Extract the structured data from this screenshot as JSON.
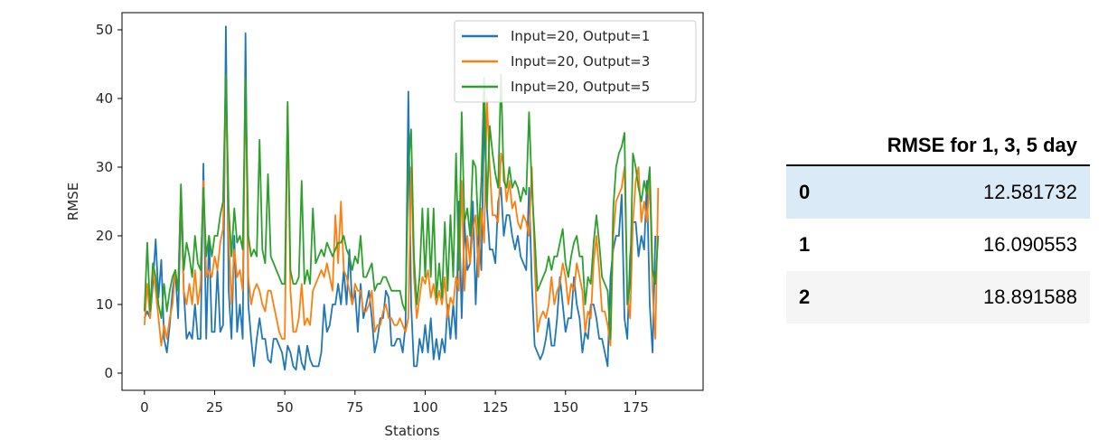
{
  "chart_data": {
    "type": "line",
    "xlabel": "Stations",
    "ylabel": "RMSE",
    "xlim": [
      -8,
      199
    ],
    "ylim": [
      -2.5,
      52.5
    ],
    "xticks": [
      0,
      25,
      50,
      75,
      100,
      125,
      150,
      175
    ],
    "yticks": [
      0,
      10,
      20,
      30,
      40,
      50
    ],
    "legend_position": "top-right",
    "colors": [
      "#1f77b4",
      "#ff7f0e",
      "#2ca02c"
    ],
    "series": [
      {
        "name": "Input=20, Output=1",
        "color": "#1f77b4",
        "values": [
          8,
          9,
          8,
          13,
          19.5,
          11,
          16.5,
          5,
          3,
          7,
          12,
          15,
          8,
          25,
          12,
          5,
          6,
          5,
          10,
          5,
          5,
          30.5,
          5,
          20,
          6,
          6,
          15,
          6,
          7,
          50.5,
          12,
          5,
          20,
          6,
          10,
          5,
          49.5,
          10,
          5,
          1,
          5,
          8,
          5,
          5,
          2,
          1.5,
          5,
          5,
          4,
          3,
          0.5,
          4,
          3,
          1,
          0.5,
          4,
          1.5,
          0.5,
          4,
          2,
          1,
          1,
          1,
          3,
          10,
          6,
          7,
          10,
          10,
          13,
          10,
          15,
          10,
          18,
          10,
          12,
          6,
          13,
          8,
          10,
          12,
          8,
          3,
          5,
          8,
          8,
          12,
          11,
          4,
          4,
          5,
          5,
          3,
          7,
          41,
          10,
          1,
          1,
          5,
          3,
          7,
          3,
          8,
          2,
          5,
          2,
          5,
          3,
          10,
          5,
          10,
          5,
          25,
          8,
          22,
          15,
          16,
          25,
          10,
          21,
          15,
          38,
          24,
          18,
          18,
          16,
          25,
          27,
          20,
          23,
          23,
          20,
          18,
          20,
          17,
          16,
          15,
          27,
          13,
          4,
          3,
          2,
          3,
          5,
          8,
          4,
          4,
          8,
          14,
          10,
          6,
          8,
          8,
          14,
          10,
          8,
          3,
          6,
          5,
          10,
          10,
          8,
          5,
          5,
          3,
          1,
          14,
          18,
          20,
          20,
          26,
          8,
          5,
          17,
          22,
          22,
          17,
          20,
          18,
          28,
          10,
          3,
          20
        ],
        "values_scale_note": ""
      },
      {
        "name": "Input=20, Output=3",
        "color": "#ff7f0e",
        "values": [
          7,
          13,
          8,
          15,
          12,
          8,
          4,
          7,
          5,
          8,
          10,
          15,
          12,
          27,
          12,
          10,
          13,
          10,
          15,
          10,
          13,
          28,
          14,
          15,
          14,
          17,
          15,
          19,
          21,
          43,
          20,
          10,
          18,
          14,
          15,
          12,
          42.5,
          14,
          10,
          12,
          13,
          12,
          10,
          9,
          12,
          12,
          10,
          8,
          6,
          5,
          5,
          39,
          12,
          6,
          6,
          8,
          13,
          7,
          8,
          7,
          12,
          13,
          14,
          15,
          14,
          16,
          14,
          12,
          23,
          16,
          25,
          15,
          14,
          12,
          10,
          13,
          12,
          12,
          9,
          9,
          10,
          12,
          6,
          7,
          7,
          9,
          10,
          8,
          8,
          7,
          7,
          8,
          7,
          6,
          8,
          30,
          14,
          8,
          11,
          14,
          13,
          15,
          11,
          13,
          10,
          12,
          10,
          14,
          8,
          11,
          10,
          14,
          12,
          28,
          12,
          20,
          16,
          21,
          23,
          14,
          24,
          19,
          40,
          30,
          23,
          23,
          22,
          32,
          30,
          25,
          28,
          24,
          25,
          22,
          21,
          23,
          22,
          20,
          30,
          16,
          6,
          8,
          9,
          8,
          10,
          14,
          10,
          12,
          13,
          16,
          14,
          10,
          13,
          12,
          16,
          14,
          12,
          6,
          9,
          8,
          16,
          20,
          15,
          9,
          9,
          7,
          4,
          20,
          25,
          26,
          27,
          30,
          12,
          8,
          22,
          28,
          30,
          22,
          25,
          22,
          28,
          12,
          5,
          27
        ]
      },
      {
        "name": "Input=20, Output=5",
        "color": "#2ca02c",
        "values": [
          9,
          19,
          9,
          16,
          14,
          10,
          8,
          13,
          9,
          12,
          14,
          15,
          12,
          27.5,
          15,
          19,
          17,
          14,
          20,
          16,
          15,
          27,
          17,
          20,
          17,
          20,
          20,
          23,
          25,
          43.5,
          24,
          17,
          24,
          19,
          20,
          18,
          43,
          20,
          17,
          18,
          17,
          34,
          18,
          16,
          29,
          17,
          16,
          15,
          14,
          13,
          13,
          39.5,
          15,
          13,
          13,
          14,
          28,
          13,
          15,
          13,
          24,
          16,
          17,
          18,
          17,
          19,
          18,
          17,
          18,
          19,
          19,
          20,
          18,
          17,
          15,
          17,
          16,
          20,
          14,
          14,
          15,
          16,
          12,
          13,
          13,
          14,
          14,
          13,
          12,
          12,
          12,
          12,
          10,
          9,
          30,
          35.5,
          17,
          10,
          14,
          24,
          14,
          24,
          14,
          24,
          11,
          16,
          11,
          22,
          12,
          23,
          14,
          32,
          15,
          38,
          22,
          24,
          20,
          31,
          30,
          20,
          28,
          43,
          24,
          36,
          32,
          29,
          27,
          43.5,
          28,
          27,
          30,
          27,
          28,
          27,
          25,
          27,
          26,
          38,
          27,
          20,
          12,
          13,
          14,
          15,
          17,
          15,
          17,
          17,
          19,
          21,
          16,
          14,
          17,
          19,
          20,
          17,
          17,
          10,
          14,
          13,
          19,
          23,
          19,
          14,
          13,
          12,
          5,
          24,
          30,
          32,
          33,
          35,
          10,
          13,
          32,
          30,
          27,
          25,
          28,
          26,
          30,
          15,
          13,
          20
        ]
      }
    ]
  },
  "table": {
    "header": "RMSE for 1, 3, 5 day",
    "rows": [
      {
        "index": "0",
        "value": "12.581732"
      },
      {
        "index": "1",
        "value": "16.090553"
      },
      {
        "index": "2",
        "value": "18.891588"
      }
    ]
  }
}
